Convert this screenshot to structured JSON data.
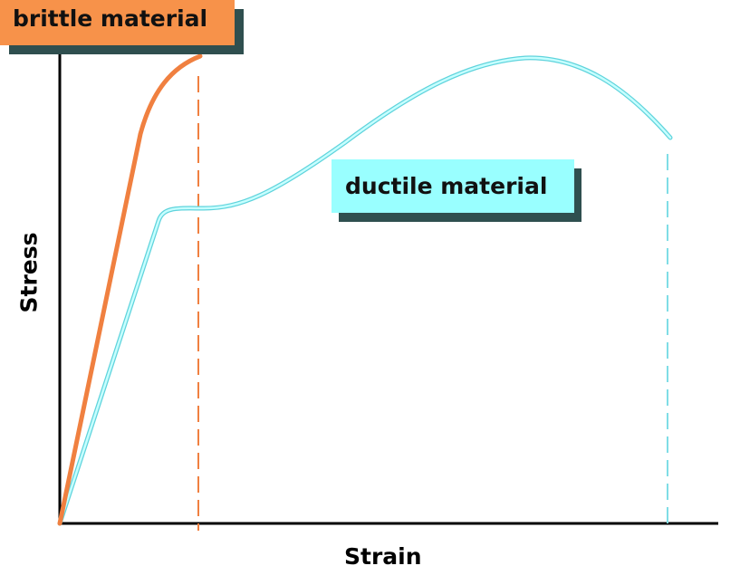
{
  "axes": {
    "xlabel": "Strain",
    "ylabel": "Stress"
  },
  "labels": {
    "brittle": "brittle material",
    "ductile": "ductile material"
  },
  "colors": {
    "brittle": "#f7924a",
    "ductile": "#99ffff",
    "ductile_line_edge": "#5fd3dc",
    "axis": "#000000",
    "label_shadow": "#2f4f4f"
  }
}
